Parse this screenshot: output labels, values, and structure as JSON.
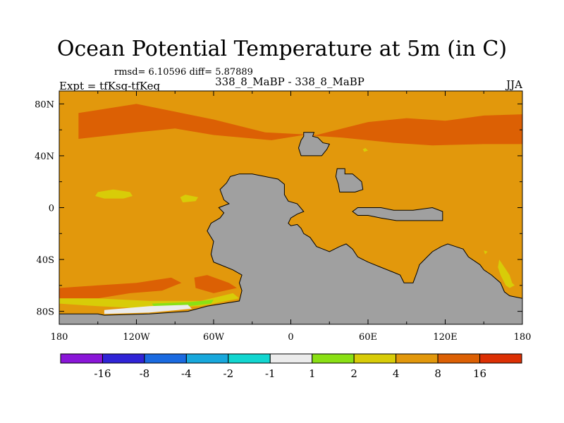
{
  "chart_data": {
    "type": "heatmap",
    "title": "Ocean Potential Temperature at 5m (in C)",
    "stats_text": "rmsd= 6.10596 diff= 5.87889",
    "experiment_label": "Expt = tfKsq-tfKeq",
    "run_label": "338_8_MaBP - 338_8_MaBP",
    "season_label": "JJA",
    "x_axis": {
      "range": [
        -180,
        180
      ],
      "ticks": [
        -180,
        -120,
        -60,
        0,
        60,
        120,
        180
      ],
      "tick_labels": [
        "180",
        "120W",
        "60W",
        "0",
        "60E",
        "120E",
        "180"
      ]
    },
    "y_axis": {
      "range": [
        -90,
        90
      ],
      "ticks": [
        80,
        40,
        0,
        -40,
        -80
      ],
      "tick_labels": [
        "80N",
        "40N",
        "0",
        "40S",
        "80S"
      ]
    },
    "colorbar": {
      "colors": [
        "#8a16d8",
        "#3024d6",
        "#1a6ae0",
        "#18a8dc",
        "#12d6d0",
        "#ececec",
        "#8ae014",
        "#d8cc08",
        "#e2980c",
        "#dc6004",
        "#dc3004"
      ],
      "labels": [
        "-16",
        "-8",
        "-4",
        "-2",
        "-1",
        "1",
        "2",
        "4",
        "8",
        "16"
      ]
    },
    "fields": {
      "background": "#e2980c",
      "land": "#a0a0a0",
      "regions": [
        {
          "name": "north-warm-band",
          "level": "8 to 16",
          "color": "#dc6004",
          "coords": [
            [
              -165,
              73
            ],
            [
              -120,
              80
            ],
            [
              -60,
              68
            ],
            [
              -20,
              58
            ],
            [
              20,
              56
            ],
            [
              60,
              66
            ],
            [
              90,
              69
            ],
            [
              120,
              67
            ],
            [
              150,
              71
            ],
            [
              180,
              72
            ],
            [
              180,
              49
            ],
            [
              150,
              49
            ],
            [
              110,
              48
            ],
            [
              80,
              50
            ],
            [
              40,
              54
            ],
            [
              10,
              56
            ],
            [
              -15,
              52
            ],
            [
              -60,
              56
            ],
            [
              -90,
              61
            ],
            [
              -120,
              58
            ],
            [
              -165,
              53
            ]
          ]
        },
        {
          "name": "tropical-anomaly-west",
          "level": "4 to 8",
          "color": "#d8cc08",
          "coords": [
            [
              -150,
              12
            ],
            [
              -138,
              14
            ],
            [
              -125,
              12
            ],
            [
              -123,
              9
            ],
            [
              -130,
              7
            ],
            [
              -145,
              7
            ],
            [
              -152,
              9
            ]
          ]
        },
        {
          "name": "tropical-anomaly-east",
          "level": "4 to 8",
          "color": "#d8cc08",
          "coords": [
            [
              -82,
              10
            ],
            [
              -86,
              8
            ],
            [
              -84,
              4
            ],
            [
              -74,
              5
            ],
            [
              -72,
              8
            ]
          ]
        },
        {
          "name": "south-warm-band",
          "level": "8 to 16",
          "color": "#dc6004",
          "coords": [
            [
              -180,
              -62
            ],
            [
              -150,
              -60
            ],
            [
              -120,
              -58
            ],
            [
              -93,
              -54
            ],
            [
              -85,
              -58
            ],
            [
              -100,
              -64
            ],
            [
              -125,
              -66
            ],
            [
              -150,
              -70
            ],
            [
              -180,
              -70
            ]
          ]
        },
        {
          "name": "weddell-warm-patch",
          "level": "8 to 16",
          "color": "#dc6004",
          "coords": [
            [
              -75,
              -54
            ],
            [
              -65,
              -52
            ],
            [
              -48,
              -58
            ],
            [
              -42,
              -62
            ],
            [
              -60,
              -66
            ],
            [
              -74,
              -62
            ]
          ]
        },
        {
          "name": "southern-edge-yellow",
          "level": "4 to 8",
          "color": "#d8cc08",
          "coords": [
            [
              -180,
              -70
            ],
            [
              -150,
              -70
            ],
            [
              -110,
              -72
            ],
            [
              -70,
              -72
            ],
            [
              -45,
              -66
            ],
            [
              -40,
              -70
            ],
            [
              -70,
              -76
            ],
            [
              -110,
              -78
            ],
            [
              -150,
              -76
            ],
            [
              -180,
              -74
            ]
          ]
        },
        {
          "name": "green-patch",
          "level": "2 to 4",
          "color": "#8ae014",
          "coords": [
            [
              -108,
              -74
            ],
            [
              -80,
              -73
            ],
            [
              -60,
              -71
            ],
            [
              -62,
              -74
            ],
            [
              -80,
              -76
            ],
            [
              -105,
              -78
            ]
          ]
        },
        {
          "name": "white-patch",
          "level": "-1 to 1",
          "color": "#ececec",
          "coords": [
            [
              -145,
              -79
            ],
            [
              -110,
              -76
            ],
            [
              -80,
              -75
            ],
            [
              -77,
              -78
            ],
            [
              -110,
              -81
            ],
            [
              -145,
              -82
            ]
          ]
        },
        {
          "name": "indian-ocean-yellow",
          "level": "4 to 8",
          "color": "#d8cc08",
          "coords": [
            [
              162,
              -40
            ],
            [
              166,
              -46
            ],
            [
              170,
              -52
            ],
            [
              172,
              -58
            ],
            [
              174,
              -60
            ],
            [
              170,
              -62
            ],
            [
              167,
              -60
            ],
            [
              163,
              -52
            ],
            [
              161,
              -46
            ]
          ]
        },
        {
          "name": "ne-yellow-dot",
          "level": "4 to 8",
          "color": "#d8cc08",
          "coords": [
            [
              56,
              45
            ],
            [
              58,
              46
            ],
            [
              60,
              44
            ],
            [
              57,
              43
            ]
          ]
        },
        {
          "name": "s-yellow-dot",
          "level": "4 to 8",
          "color": "#d8cc08",
          "coords": [
            [
              150,
              -33
            ],
            [
              153,
              -34
            ],
            [
              151,
              -36
            ]
          ]
        }
      ],
      "land_masses": [
        {
          "name": "south-america-antarctica",
          "coords": [
            [
              -47,
              24
            ],
            [
              -40,
              26
            ],
            [
              -30,
              26
            ],
            [
              -20,
              24
            ],
            [
              -10,
              22
            ],
            [
              -5,
              18
            ],
            [
              -5,
              10
            ],
            [
              -2,
              5
            ],
            [
              5,
              3
            ],
            [
              10,
              -3
            ],
            [
              5,
              -5
            ],
            [
              0,
              -8
            ],
            [
              -2,
              -12
            ],
            [
              0,
              -14
            ],
            [
              5,
              -13
            ],
            [
              8,
              -16
            ],
            [
              10,
              -20
            ],
            [
              15,
              -23
            ],
            [
              20,
              -30
            ],
            [
              25,
              -32
            ],
            [
              30,
              -34
            ],
            [
              38,
              -30
            ],
            [
              43,
              -28
            ],
            [
              48,
              -32
            ],
            [
              52,
              -38
            ],
            [
              56,
              -40
            ],
            [
              60,
              -42
            ],
            [
              70,
              -46
            ],
            [
              80,
              -50
            ],
            [
              85,
              -52
            ],
            [
              88,
              -58
            ],
            [
              95,
              -58
            ],
            [
              98,
              -50
            ],
            [
              100,
              -44
            ],
            [
              106,
              -38
            ],
            [
              110,
              -34
            ],
            [
              117,
              -30
            ],
            [
              122,
              -28
            ],
            [
              128,
              -30
            ],
            [
              134,
              -32
            ],
            [
              138,
              -38
            ],
            [
              147,
              -44
            ],
            [
              150,
              -48
            ],
            [
              156,
              -52
            ],
            [
              163,
              -58
            ],
            [
              166,
              -65
            ],
            [
              170,
              -68
            ],
            [
              180,
              -70
            ],
            [
              180,
              -90
            ],
            [
              -180,
              -90
            ],
            [
              -180,
              -82
            ],
            [
              -150,
              -82
            ],
            [
              -145,
              -83
            ],
            [
              -110,
              -82
            ],
            [
              -80,
              -80
            ],
            [
              -65,
              -76
            ],
            [
              -40,
              -72
            ],
            [
              -38,
              -64
            ],
            [
              -40,
              -58
            ],
            [
              -38,
              -52
            ],
            [
              -45,
              -48
            ],
            [
              -55,
              -44
            ],
            [
              -60,
              -42
            ],
            [
              -62,
              -36
            ],
            [
              -60,
              -26
            ],
            [
              -65,
              -18
            ],
            [
              -62,
              -12
            ],
            [
              -55,
              -8
            ],
            [
              -52,
              -4
            ],
            [
              -56,
              0
            ],
            [
              -48,
              3
            ],
            [
              -52,
              6
            ],
            [
              -55,
              14
            ],
            [
              -50,
              19
            ]
          ]
        },
        {
          "name": "north-africa-block",
          "coords": [
            [
              10,
              58
            ],
            [
              18,
              58
            ],
            [
              17,
              55
            ],
            [
              21,
              54
            ],
            [
              25,
              50
            ],
            [
              30,
              49
            ],
            [
              28,
              45
            ],
            [
              24,
              40
            ],
            [
              16,
              40
            ],
            [
              8,
              40
            ],
            [
              6,
              46
            ],
            [
              8,
              52
            ],
            [
              10,
              55
            ]
          ]
        },
        {
          "name": "arabia-block",
          "coords": [
            [
              36,
              30
            ],
            [
              42,
              30
            ],
            [
              42,
              26
            ],
            [
              48,
              26
            ],
            [
              55,
              20
            ],
            [
              56,
              14
            ],
            [
              50,
              12
            ],
            [
              38,
              12
            ],
            [
              37,
              18
            ],
            [
              35,
              24
            ]
          ]
        },
        {
          "name": "maritime-continent",
          "coords": [
            [
              52,
              0
            ],
            [
              70,
              0
            ],
            [
              80,
              -2
            ],
            [
              95,
              -2
            ],
            [
              110,
              0
            ],
            [
              118,
              -3
            ],
            [
              118,
              -10
            ],
            [
              100,
              -10
            ],
            [
              82,
              -10
            ],
            [
              70,
              -8
            ],
            [
              60,
              -6
            ],
            [
              52,
              -6
            ],
            [
              48,
              -3
            ]
          ]
        }
      ]
    }
  }
}
